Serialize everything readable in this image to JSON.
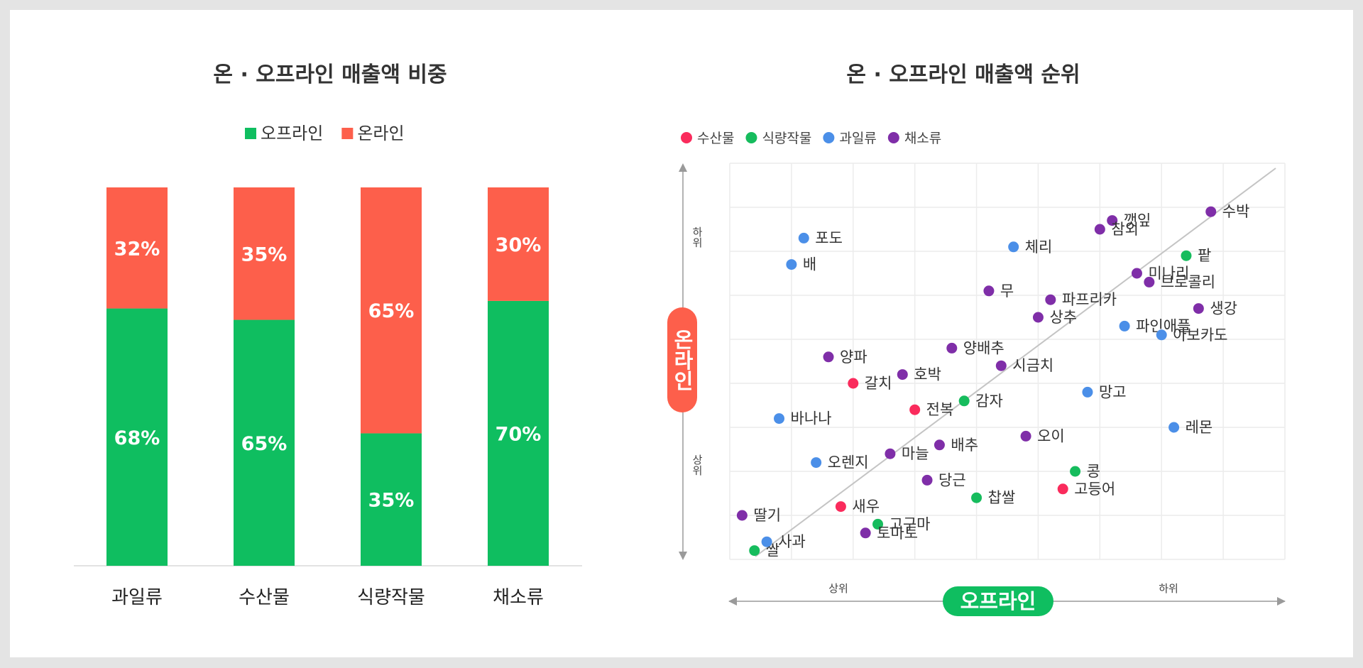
{
  "chart_data": [
    {
      "type": "bar",
      "stacked": true,
      "title": "온 · 오프라인 매출액 비중",
      "categories": [
        "과일류",
        "수산물",
        "식량작물",
        "채소류"
      ],
      "series": [
        {
          "name": "오프라인",
          "color": "#0fbe60",
          "values": [
            68,
            65,
            35,
            70
          ],
          "labels": [
            "68%",
            "65%",
            "35%",
            "70%"
          ]
        },
        {
          "name": "온라인",
          "color": "#fd5f4b",
          "values": [
            32,
            35,
            65,
            30
          ],
          "labels": [
            "32%",
            "35%",
            "65%",
            "30%"
          ]
        }
      ],
      "ylim": [
        0,
        100
      ],
      "legend": "top-center",
      "grid": false
    },
    {
      "type": "scatter",
      "title": "온 · 오프라인 매출액 순위",
      "xlabel": "오프라인",
      "ylabel": "온라인",
      "x_rank_labels": {
        "left": "상위",
        "right": "하위"
      },
      "y_rank_labels": {
        "top": "하위",
        "bottom": "상위"
      },
      "xlim": [
        0,
        9
      ],
      "ylim": [
        0,
        9
      ],
      "grid": true,
      "legend": "top-left",
      "series": [
        {
          "name": "수산물",
          "color": "#fa2b5c",
          "points": [
            {
              "label": "갈치",
              "x": 2.0,
              "y": 4.0
            },
            {
              "label": "전복",
              "x": 3.0,
              "y": 3.4
            },
            {
              "label": "새우",
              "x": 1.8,
              "y": 1.2
            },
            {
              "label": "고등어",
              "x": 5.4,
              "y": 1.6
            }
          ]
        },
        {
          "name": "식량작물",
          "color": "#16bc5d",
          "points": [
            {
              "label": "팥",
              "x": 7.4,
              "y": 6.9
            },
            {
              "label": "감자",
              "x": 3.8,
              "y": 3.6
            },
            {
              "label": "콩",
              "x": 5.6,
              "y": 2.0
            },
            {
              "label": "찹쌀",
              "x": 4.0,
              "y": 1.4
            },
            {
              "label": "고구마",
              "x": 2.4,
              "y": 0.8
            },
            {
              "label": "쌀",
              "x": 0.4,
              "y": 0.2
            }
          ]
        },
        {
          "name": "과일류",
          "color": "#4b8fe8",
          "points": [
            {
              "label": "포도",
              "x": 1.2,
              "y": 7.3
            },
            {
              "label": "배",
              "x": 1.0,
              "y": 6.7
            },
            {
              "label": "체리",
              "x": 4.6,
              "y": 7.1
            },
            {
              "label": "파인애플",
              "x": 6.4,
              "y": 5.3
            },
            {
              "label": "아보카도",
              "x": 7.0,
              "y": 5.1
            },
            {
              "label": "망고",
              "x": 5.8,
              "y": 3.8
            },
            {
              "label": "레몬",
              "x": 7.2,
              "y": 3.0
            },
            {
              "label": "바나나",
              "x": 0.8,
              "y": 3.2
            },
            {
              "label": "오렌지",
              "x": 1.4,
              "y": 2.2
            },
            {
              "label": "사과",
              "x": 0.6,
              "y": 0.4
            }
          ]
        },
        {
          "name": "채소류",
          "color": "#7f2ea8",
          "points": [
            {
              "label": "수박",
              "x": 7.8,
              "y": 7.9
            },
            {
              "label": "깻잎",
              "x": 6.2,
              "y": 7.7
            },
            {
              "label": "참외",
              "x": 6.0,
              "y": 7.5
            },
            {
              "label": "미나리",
              "x": 6.6,
              "y": 6.5
            },
            {
              "label": "브로콜리",
              "x": 6.8,
              "y": 6.3
            },
            {
              "label": "생강",
              "x": 7.6,
              "y": 5.7
            },
            {
              "label": "무",
              "x": 4.2,
              "y": 6.1
            },
            {
              "label": "파프리카",
              "x": 5.2,
              "y": 5.9
            },
            {
              "label": "상추",
              "x": 5.0,
              "y": 5.5
            },
            {
              "label": "양배추",
              "x": 3.6,
              "y": 4.8
            },
            {
              "label": "시금치",
              "x": 4.4,
              "y": 4.4
            },
            {
              "label": "양파",
              "x": 1.6,
              "y": 4.6
            },
            {
              "label": "호박",
              "x": 2.8,
              "y": 4.2
            },
            {
              "label": "오이",
              "x": 4.8,
              "y": 2.8
            },
            {
              "label": "배추",
              "x": 3.4,
              "y": 2.6
            },
            {
              "label": "마늘",
              "x": 2.6,
              "y": 2.4
            },
            {
              "label": "당근",
              "x": 3.2,
              "y": 1.8
            },
            {
              "label": "토마토",
              "x": 2.2,
              "y": 0.6
            },
            {
              "label": "딸기",
              "x": 0.2,
              "y": 1.0
            }
          ]
        }
      ]
    }
  ]
}
